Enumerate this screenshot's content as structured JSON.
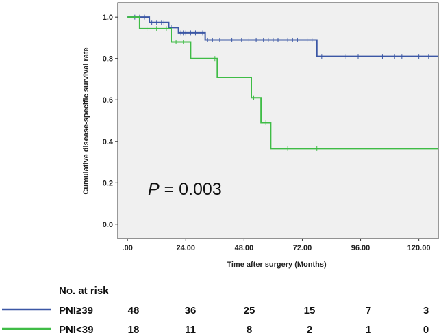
{
  "chart_data": {
    "type": "line",
    "subtype": "kaplan-meier",
    "xlabel": "Time after surgery (Months)",
    "ylabel": "Cumulative disease-specific survival rate",
    "x_ticks": [
      0,
      24,
      48,
      72,
      96,
      120
    ],
    "x_tick_labels": [
      ".00",
      "24.00",
      "48.00",
      "72.00",
      "96.00",
      "120.00"
    ],
    "y_ticks": [
      0.0,
      0.2,
      0.4,
      0.6,
      0.8,
      1.0
    ],
    "y_tick_labels": [
      "0.0",
      "0.2",
      "0.4",
      "0.6",
      "0.8",
      "1.0"
    ],
    "xlim": [
      -4,
      128
    ],
    "ylim": [
      -0.07,
      1.07
    ],
    "grid": false,
    "annotation": {
      "italic": "P",
      "text": " = 0.003"
    },
    "series": [
      {
        "name": "PNI≥39",
        "color": "#3b57a5",
        "steps": [
          [
            0,
            1.0
          ],
          [
            9,
            0.975
          ],
          [
            17,
            0.95
          ],
          [
            21,
            0.925
          ],
          [
            32,
            0.89
          ],
          [
            78,
            0.81
          ],
          [
            128,
            0.81
          ]
        ],
        "censors": [
          [
            3,
            1.0
          ],
          [
            5,
            1.0
          ],
          [
            7,
            1.0
          ],
          [
            10,
            0.975
          ],
          [
            12,
            0.975
          ],
          [
            14,
            0.975
          ],
          [
            15,
            0.975
          ],
          [
            18,
            0.95
          ],
          [
            22,
            0.925
          ],
          [
            23,
            0.925
          ],
          [
            24,
            0.925
          ],
          [
            26,
            0.925
          ],
          [
            28,
            0.925
          ],
          [
            31,
            0.925
          ],
          [
            33,
            0.89
          ],
          [
            35,
            0.89
          ],
          [
            38,
            0.89
          ],
          [
            43,
            0.89
          ],
          [
            47,
            0.89
          ],
          [
            50,
            0.89
          ],
          [
            53,
            0.89
          ],
          [
            56,
            0.89
          ],
          [
            58,
            0.89
          ],
          [
            60,
            0.89
          ],
          [
            62,
            0.89
          ],
          [
            66,
            0.89
          ],
          [
            68,
            0.89
          ],
          [
            70,
            0.89
          ],
          [
            74,
            0.89
          ],
          [
            76,
            0.89
          ],
          [
            80,
            0.81
          ],
          [
            90,
            0.81
          ],
          [
            95,
            0.81
          ],
          [
            105,
            0.81
          ],
          [
            110,
            0.81
          ],
          [
            113,
            0.81
          ],
          [
            120,
            0.81
          ],
          [
            124,
            0.81
          ]
        ]
      },
      {
        "name": "PNI<39",
        "color": "#3fbc46",
        "steps": [
          [
            0,
            1.0
          ],
          [
            5,
            0.945
          ],
          [
            18,
            0.88
          ],
          [
            26,
            0.8
          ],
          [
            37,
            0.71
          ],
          [
            51,
            0.61
          ],
          [
            55,
            0.49
          ],
          [
            59,
            0.365
          ],
          [
            128,
            0.365
          ]
        ],
        "censors": [
          [
            8,
            0.945
          ],
          [
            12,
            0.945
          ],
          [
            16,
            0.945
          ],
          [
            20,
            0.88
          ],
          [
            23,
            0.88
          ],
          [
            36,
            0.8
          ],
          [
            52,
            0.61
          ],
          [
            57,
            0.49
          ],
          [
            66,
            0.365
          ],
          [
            78,
            0.365
          ]
        ]
      }
    ]
  },
  "risk_table": {
    "title": "No. at risk",
    "rows": [
      {
        "name": "PNI≥39",
        "color": "#3b57a5",
        "counts": [
          "48",
          "36",
          "25",
          "15",
          "7",
          "3"
        ]
      },
      {
        "name": "PNI<39",
        "color": "#3fbc46",
        "counts": [
          "18",
          "11",
          "8",
          "2",
          "1",
          "0"
        ]
      }
    ]
  }
}
